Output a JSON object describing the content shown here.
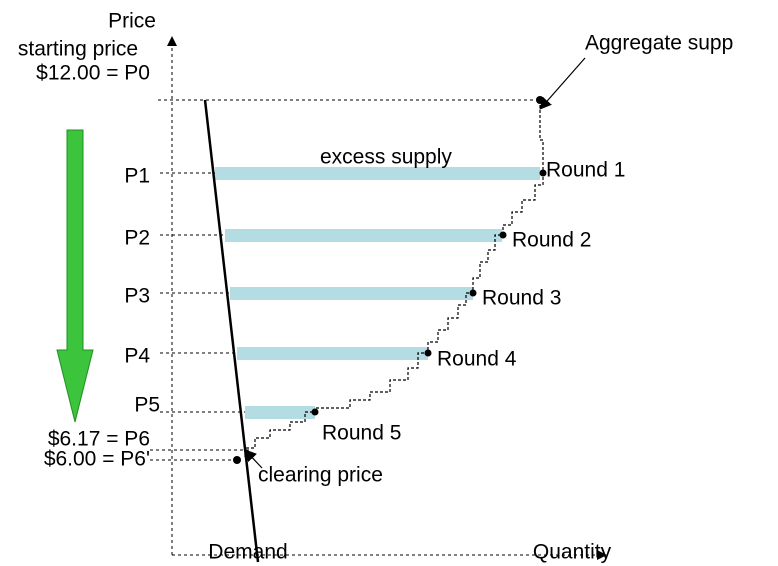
{
  "axes": {
    "y_label": "Price",
    "x_label": "Quantity",
    "demand_label": "Demand"
  },
  "start": {
    "caption": "starting price",
    "label": "$12.00 = P0"
  },
  "prices": [
    "P1",
    "P2",
    "P3",
    "P4",
    "P5"
  ],
  "final_prices": [
    "$6.17 = P6",
    "$6.00 = P6'"
  ],
  "rounds": [
    "Round 1",
    "Round 2",
    "Round 3",
    "Round 4",
    "Round 5"
  ],
  "annotations": {
    "excess": "excess supply",
    "supply": "Aggregate supp",
    "clearing": "clearing price"
  }
}
